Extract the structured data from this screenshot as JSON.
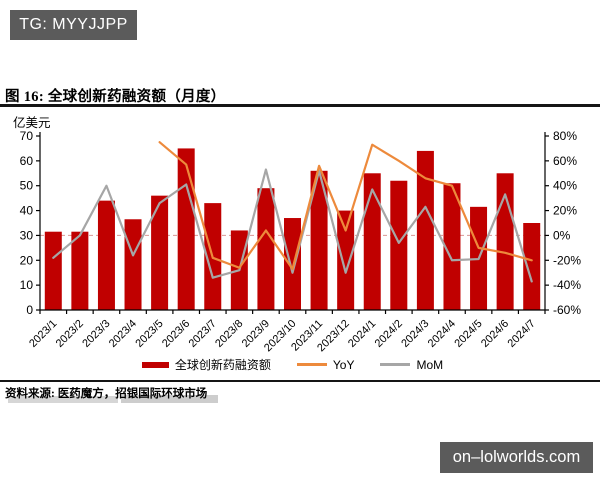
{
  "top_badge": {
    "text": "TG: MYYJJPP"
  },
  "bottom_badge": {
    "text": "on–lolworlds.com"
  },
  "figure": {
    "title": "图 16: 全球创新药融资额（月度）",
    "unit_label": "亿美元",
    "source_note": "资料来源: 医药魔方，招银国际环球市场"
  },
  "colors": {
    "bar_red": "#C00000",
    "yoy_orange": "#ED8A3C",
    "mom_gray": "#A6A6A6",
    "zero_dash": "#D99694",
    "axis_black": "#000000",
    "badge_gray": "#5b5b5b"
  },
  "chart_data": {
    "type": "bar",
    "subtype": "bar+line combo, dual axis",
    "title": "全球创新药融资额（月度）",
    "categories": [
      "2023/1",
      "2023/2",
      "2023/3",
      "2023/4",
      "2023/5",
      "2023/6",
      "2023/7",
      "2023/8",
      "2023/9",
      "2023/10",
      "2023/11",
      "2023/12",
      "2024/1",
      "2024/2",
      "2024/3",
      "2024/4",
      "2024/5",
      "2024/6",
      "2024/7"
    ],
    "series": [
      {
        "name": "全球创新药融资额",
        "type": "bar",
        "axis": "left",
        "color": "#C00000",
        "values": [
          31.5,
          31.5,
          44,
          36.5,
          46,
          65,
          43,
          32,
          49,
          37,
          56,
          40,
          55,
          52,
          64,
          51,
          41.5,
          55,
          35
        ]
      },
      {
        "name": "YoY",
        "type": "line",
        "axis": "right",
        "color": "#ED8A3C",
        "values": [
          null,
          null,
          null,
          null,
          75,
          57,
          -18,
          -26,
          4,
          -27,
          56,
          4,
          73,
          60,
          46,
          40,
          -10,
          -14,
          -20
        ]
      },
      {
        "name": "MoM",
        "type": "line",
        "axis": "right",
        "color": "#A6A6A6",
        "values": [
          -18,
          0,
          40,
          -16,
          26,
          41,
          -34,
          -28,
          53,
          -30,
          52,
          -30,
          37,
          -6,
          23,
          -20,
          -19,
          33,
          -37
        ]
      }
    ],
    "left_axis": {
      "label": "亿美元",
      "min": 0,
      "max": 70,
      "step": 10,
      "ticks": [
        "70",
        "60",
        "50",
        "40",
        "30",
        "20",
        "10",
        "0"
      ]
    },
    "right_axis": {
      "min": -60,
      "max": 80,
      "step": 20,
      "format": "percent",
      "ticks": [
        "80%",
        "60%",
        "40%",
        "20%",
        "0%",
        "-20%",
        "-40%",
        "-60%"
      ]
    },
    "zero_line": {
      "at_percent": 0,
      "style": "dashed"
    },
    "grid": false,
    "legend_position": "bottom"
  }
}
